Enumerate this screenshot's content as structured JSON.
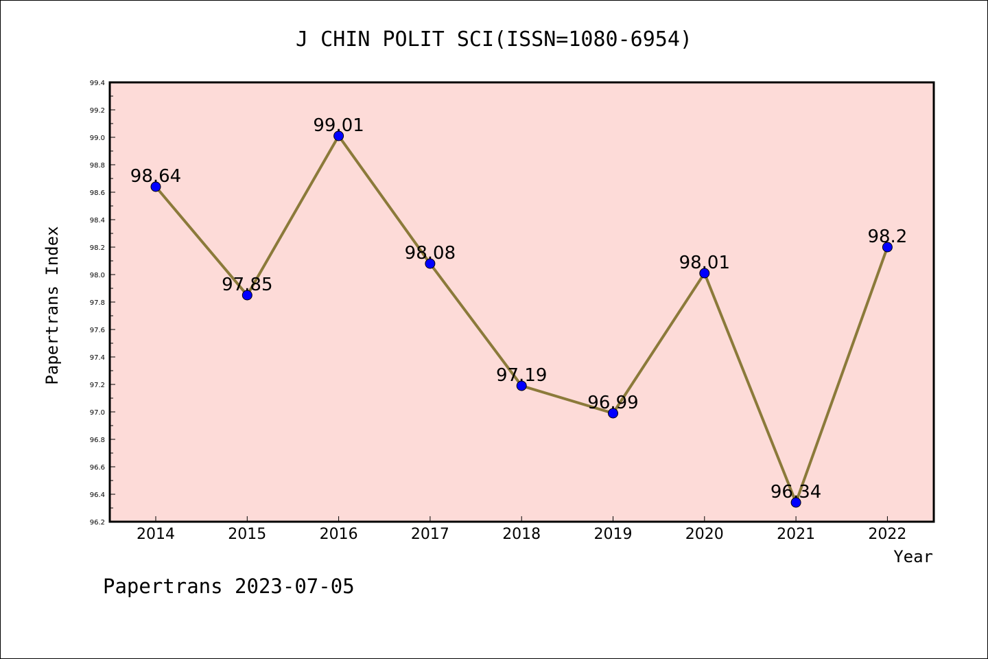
{
  "chart_data": {
    "type": "line",
    "title": "J CHIN POLIT SCI(ISSN=1080-6954)",
    "xlabel": "Year",
    "ylabel": "Papertrans Index",
    "categories": [
      "2014",
      "2015",
      "2016",
      "2017",
      "2018",
      "2019",
      "2020",
      "2021",
      "2022"
    ],
    "series": [
      {
        "values": [
          98.64,
          97.85,
          99.01,
          98.08,
          97.19,
          96.99,
          98.01,
          96.34,
          98.2
        ],
        "labels": [
          "98.64",
          "97.85",
          "99.01",
          "98.08",
          "97.19",
          "96.99",
          "98.01",
          "96.34",
          "98.2"
        ]
      }
    ],
    "ylim": [
      96.2,
      99.4
    ],
    "yticks": [
      "96.2",
      "96.4",
      "96.6",
      "96.8",
      "97.0",
      "97.2",
      "97.4",
      "97.6",
      "97.8",
      "98.0",
      "98.2",
      "98.4",
      "98.6",
      "98.8",
      "99.0",
      "99.2",
      "99.4"
    ],
    "grid": false,
    "colors": {
      "plot_background": "#fddbd8",
      "line": "#8b7a3a",
      "marker": "#0000ff"
    }
  },
  "footer": "Papertrans 2023-07-05"
}
